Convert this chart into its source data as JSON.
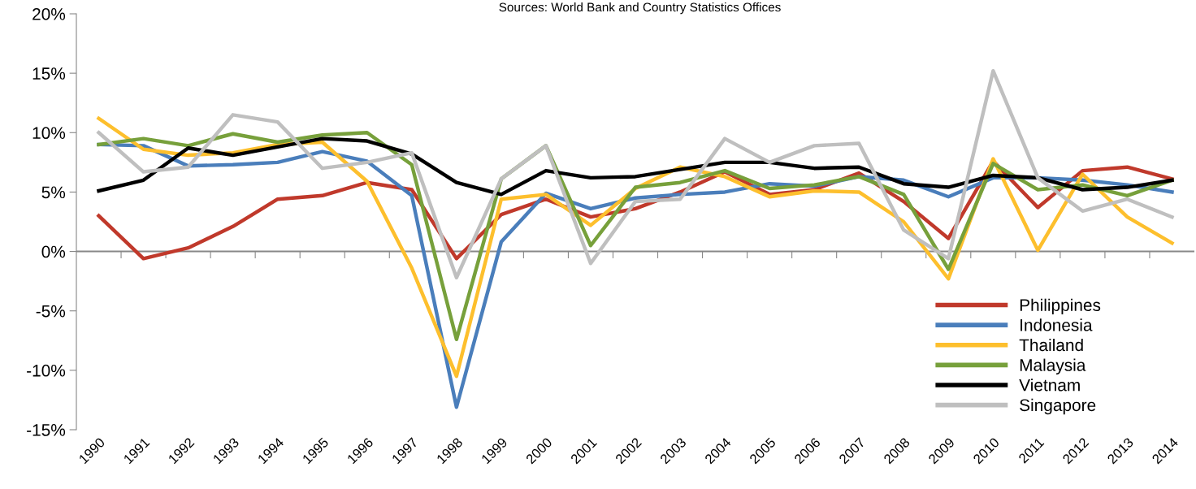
{
  "chart_data": {
    "type": "line",
    "annotations": [
      "Sources: World Bank and Country Statistics Offices"
    ],
    "categories": [
      "1990",
      "1991",
      "1992",
      "1993",
      "1994",
      "1995",
      "1996",
      "1997",
      "1998",
      "1999",
      "2000",
      "2001",
      "2002",
      "2003",
      "2004",
      "2005",
      "2006",
      "2007",
      "2008",
      "2009",
      "2010",
      "2011",
      "2012",
      "2013",
      "2014"
    ],
    "series": [
      {
        "name": "Philippines",
        "color": "#c0392b",
        "values": [
          3.0,
          -0.6,
          0.3,
          2.1,
          4.4,
          4.7,
          5.8,
          5.2,
          -0.6,
          3.1,
          4.4,
          2.9,
          3.6,
          5.0,
          6.7,
          4.8,
          5.2,
          6.6,
          4.2,
          1.1,
          7.6,
          3.7,
          6.8,
          7.1,
          6.1
        ]
      },
      {
        "name": "Indonesia",
        "color": "#4a7ebb",
        "values": [
          9.0,
          8.9,
          7.2,
          7.3,
          7.5,
          8.4,
          7.6,
          4.7,
          -13.1,
          0.8,
          4.9,
          3.6,
          4.5,
          4.8,
          5.0,
          5.7,
          5.5,
          6.3,
          6.0,
          4.6,
          6.2,
          6.2,
          6.0,
          5.6,
          5.0
        ]
      },
      {
        "name": "Thailand",
        "color": "#fdbf2d",
        "values": [
          11.2,
          8.6,
          8.1,
          8.3,
          9.0,
          9.2,
          5.9,
          -1.4,
          -10.5,
          4.4,
          4.8,
          2.2,
          5.3,
          7.1,
          6.3,
          4.6,
          5.1,
          5.0,
          2.5,
          -2.3,
          7.8,
          0.1,
          6.5,
          2.9,
          0.7
        ]
      },
      {
        "name": "Malaysia",
        "color": "#77a03b",
        "values": [
          9.0,
          9.5,
          8.9,
          9.9,
          9.2,
          9.8,
          10.0,
          7.3,
          -7.4,
          6.1,
          8.9,
          0.5,
          5.4,
          5.8,
          6.8,
          5.3,
          5.6,
          6.3,
          4.8,
          -1.5,
          7.4,
          5.2,
          5.6,
          4.7,
          6.0
        ]
      },
      {
        "name": "Vietnam",
        "color": "#000000",
        "values": [
          5.1,
          6.0,
          8.7,
          8.1,
          8.8,
          9.5,
          9.3,
          8.2,
          5.8,
          4.8,
          6.8,
          6.2,
          6.3,
          6.9,
          7.5,
          7.5,
          7.0,
          7.1,
          5.7,
          5.4,
          6.4,
          6.2,
          5.2,
          5.4,
          6.0
        ]
      },
      {
        "name": "Singapore",
        "color": "#bfbfbf",
        "values": [
          10.0,
          6.7,
          7.1,
          11.5,
          10.9,
          7.0,
          7.5,
          8.3,
          -2.2,
          6.1,
          8.9,
          -1.0,
          4.2,
          4.4,
          9.5,
          7.5,
          8.9,
          9.1,
          1.8,
          -0.6,
          15.2,
          6.2,
          3.4,
          4.4,
          2.9
        ]
      }
    ],
    "ylim": [
      -15,
      20
    ],
    "yticks": [
      {
        "value": -15,
        "label": "-15%"
      },
      {
        "value": -10,
        "label": "-10%"
      },
      {
        "value": -5,
        "label": "-5%"
      },
      {
        "value": 0,
        "label": "0%"
      },
      {
        "value": 5,
        "label": "5%"
      },
      {
        "value": 10,
        "label": "10%"
      },
      {
        "value": 15,
        "label": "15%"
      },
      {
        "value": 20,
        "label": "20%"
      }
    ],
    "ref_lines": [
      {
        "axis": "y",
        "value": 0,
        "color": "#888888"
      }
    ],
    "grid": false,
    "legend": "bottom right",
    "marker": "none",
    "line_style": "solid"
  }
}
